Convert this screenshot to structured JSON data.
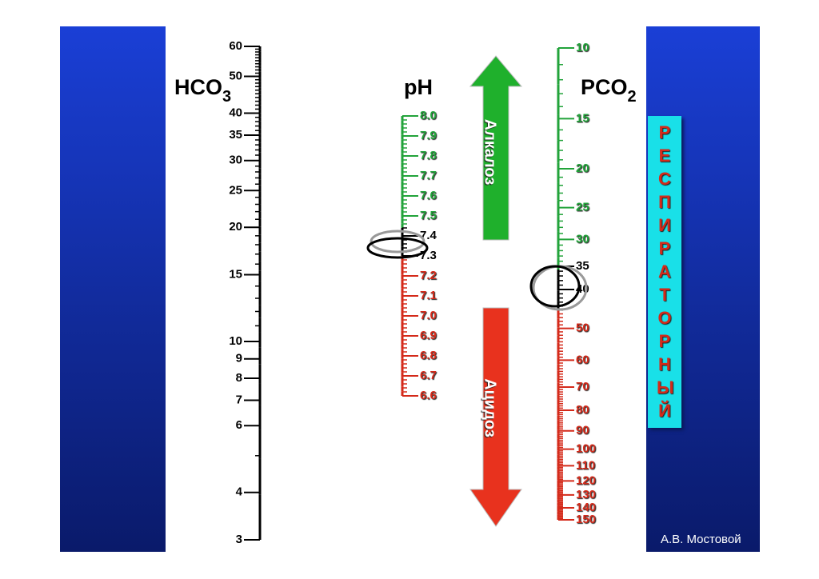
{
  "scales": [
    {
      "name": "HCO",
      "subscript": "3",
      "log": true,
      "lim": [
        3,
        60
      ],
      "ticks": [
        3,
        4,
        6,
        7,
        8,
        9,
        10,
        15,
        20,
        25,
        30,
        35,
        40,
        50,
        60
      ],
      "minor_step": 1
    },
    {
      "name": "pH",
      "log": false,
      "lim": [
        6.6,
        8
      ],
      "ticks": [
        {
          "value": 6.6,
          "label": "6.6"
        },
        6.7,
        6.8,
        6.9,
        {
          "value": 7,
          "label": "7.0"
        },
        7.1,
        7.2,
        7.3,
        7.4,
        7.5,
        7.6,
        7.7,
        7.8,
        7.9,
        {
          "value": 8,
          "label": "8.0"
        }
      ],
      "minor_step": 0.02,
      "normal": [
        7.3,
        7.45
      ],
      "colors": {
        "below": "#d42a1a",
        "normal": "#000000",
        "above": "#22a33a"
      }
    },
    {
      "name": "PCO",
      "subscript": "2",
      "log": true,
      "lim": [
        10,
        150
      ],
      "ticks": [
        10,
        15,
        20,
        25,
        30,
        35,
        40,
        50,
        60,
        70,
        80,
        90,
        100,
        110,
        120,
        130,
        140,
        150
      ],
      "minor_step": 1,
      "normal": [
        35,
        45
      ],
      "colors": {
        "below": "#22a33a",
        "normal": "#000000",
        "above": "#d42a1a"
      }
    }
  ],
  "arrows": [
    {
      "label": "Алкалоз",
      "color": "#1fb02c"
    },
    {
      "label": "Ацидоз",
      "color": "#e8321e"
    }
  ],
  "side_label": "РЕСПИРАТОРНЫЙ",
  "author": "А.В. Мостовой"
}
